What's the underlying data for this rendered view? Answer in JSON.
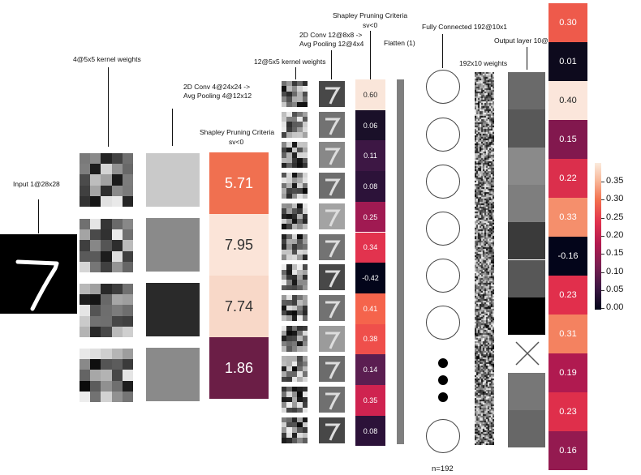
{
  "labels": {
    "input": "Input 1@28x28",
    "kernels4": "4@5x5 kernel weights",
    "conv1": [
      "2D Conv 4@24x24 ->",
      "Avg Pooling 4@12x12"
    ],
    "shapley1": [
      "Shapley Pruning Criteria",
      "sv<0"
    ],
    "kernels12": "12@5x5 kernel weights",
    "conv2": [
      "2D Conv 12@8x8 ->",
      "Avg Pooling 12@4x4"
    ],
    "shapley2": [
      "Shapley Pruning Criteria",
      "sv<0"
    ],
    "flatten": "Flatten (1)",
    "fc": "Fully Connected 192@10x1",
    "weights": "192x10 weights",
    "output": "Output layer 10@",
    "n": "n=192"
  },
  "shapley1_values": [
    "5.71",
    "7.95",
    "7.74",
    "1.86"
  ],
  "shapley2_values": [
    "0.60",
    "0.06",
    "0.11",
    "0.08",
    "0.25",
    "0.34",
    "-0.42",
    "0.41",
    "0.38",
    "0.14",
    "0.35",
    "0.08"
  ],
  "output_values": [
    "0.30",
    "0.01",
    "0.40",
    "0.15",
    "0.22",
    "0.33",
    "-0.16",
    "0.23",
    "0.31",
    "0.19",
    "0.23",
    "0.16"
  ],
  "colorbar_ticks": [
    "0.35",
    "0.30",
    "0.25",
    "0.20",
    "0.15",
    "0.10",
    "0.05",
    "0.00"
  ],
  "colors": {
    "shapley1": [
      "#f07050",
      "#fbe4d8",
      "#f8d8c8",
      "#6b1e46"
    ],
    "shapley2": [
      "#fae6da",
      "#1a1029",
      "#3d1744",
      "#2c1239",
      "#a01a52",
      "#e2334e",
      "#03051a",
      "#f5644c",
      "#ef4f4b",
      "#5b1e51",
      "#cf2350",
      "#2c1239"
    ],
    "output": [
      "#ee5a4b",
      "#0d0a1d",
      "#fbe6db",
      "#82184e",
      "#db2f4c",
      "#f58f6c",
      "#03051a",
      "#e12f4c",
      "#f48260",
      "#b01a50",
      "#df2f4b",
      "#941a50"
    ]
  }
}
